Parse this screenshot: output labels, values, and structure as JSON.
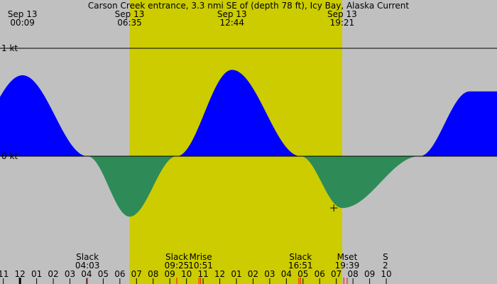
{
  "chart_data": {
    "type": "area",
    "title": "Carson Creek entrance, 3.3 nmi SE of (depth 78 ft), Icy Bay, Alaska Current",
    "colors": {
      "night": "#c0c0c0",
      "day": "#cccc00",
      "flood": "#0000ff",
      "ebb": "#2e8b57",
      "axis": "#000000"
    },
    "x_range_hours": [
      -1.2,
      28.65
    ],
    "y_range_kt": [
      -1.0,
      1.0
    ],
    "y_axis_labels": [
      {
        "value": 1,
        "label": "1 kt"
      },
      {
        "value": 0,
        "label": "0 kt"
      }
    ],
    "event_labels": [
      {
        "day": "Sep 13",
        "time": "00:09",
        "hour": 0.15
      },
      {
        "day": "Sep 13",
        "time": "06:35",
        "hour": 6.583
      },
      {
        "day": "Sep 13",
        "time": "12:44",
        "hour": 12.733
      },
      {
        "day": "Sep 13",
        "time": "19:21",
        "hour": 19.35
      }
    ],
    "daylight": {
      "start_hour": 6.583,
      "end_hour": 19.35
    },
    "current_points": [
      {
        "hour": 0.15,
        "kt": 0.75
      },
      {
        "hour": 4.05,
        "kt": 0.0
      },
      {
        "hour": 6.583,
        "kt": -0.56
      },
      {
        "hour": 9.417,
        "kt": 0.0
      },
      {
        "hour": 12.733,
        "kt": 0.8
      },
      {
        "hour": 16.85,
        "kt": 0.0
      },
      {
        "hour": 19.35,
        "kt": -0.48
      },
      {
        "hour": 24.0,
        "kt": 0.0
      },
      {
        "hour": 27.0,
        "kt": 0.6
      }
    ],
    "x_ticks": [
      {
        "hour": -1,
        "label": "11"
      },
      {
        "hour": 0,
        "label": "12"
      },
      {
        "hour": 1,
        "label": "01"
      },
      {
        "hour": 2,
        "label": "02"
      },
      {
        "hour": 3,
        "label": "03"
      },
      {
        "hour": 4,
        "label": "04"
      },
      {
        "hour": 5,
        "label": "05"
      },
      {
        "hour": 6,
        "label": "06"
      },
      {
        "hour": 7,
        "label": "07"
      },
      {
        "hour": 8,
        "label": "08"
      },
      {
        "hour": 9,
        "label": "09"
      },
      {
        "hour": 10,
        "label": "10"
      },
      {
        "hour": 11,
        "label": "11"
      },
      {
        "hour": 12,
        "label": "12"
      },
      {
        "hour": 13,
        "label": "01"
      },
      {
        "hour": 14,
        "label": "02"
      },
      {
        "hour": 15,
        "label": "03"
      },
      {
        "hour": 16,
        "label": "04"
      },
      {
        "hour": 17,
        "label": "05"
      },
      {
        "hour": 18,
        "label": "06"
      },
      {
        "hour": 19,
        "label": "07"
      },
      {
        "hour": 20,
        "label": "08"
      },
      {
        "hour": 21,
        "label": "09"
      },
      {
        "hour": 22,
        "label": "10"
      }
    ],
    "bottom_events": [
      {
        "name": "Slack",
        "time": "04:03",
        "hour": 4.05
      },
      {
        "name": "Slack",
        "time": "09:25",
        "hour": 9.417
      },
      {
        "name": "Mrise",
        "time": "10:51",
        "hour": 10.85
      },
      {
        "name": "Slack",
        "time": "16:51",
        "hour": 16.85
      },
      {
        "name": "Mset",
        "time": "19:39",
        "hour": 19.65
      },
      {
        "name": "S",
        "time": "2",
        "hour": 21.95
      }
    ],
    "red_markers_hours": [
      4.05,
      9.417,
      10.75,
      10.85,
      16.75,
      16.85,
      19.45,
      19.65
    ],
    "now_marker": {
      "hour": 18.85,
      "kt": -0.48
    },
    "midnight_marker_hour": 0.0
  }
}
